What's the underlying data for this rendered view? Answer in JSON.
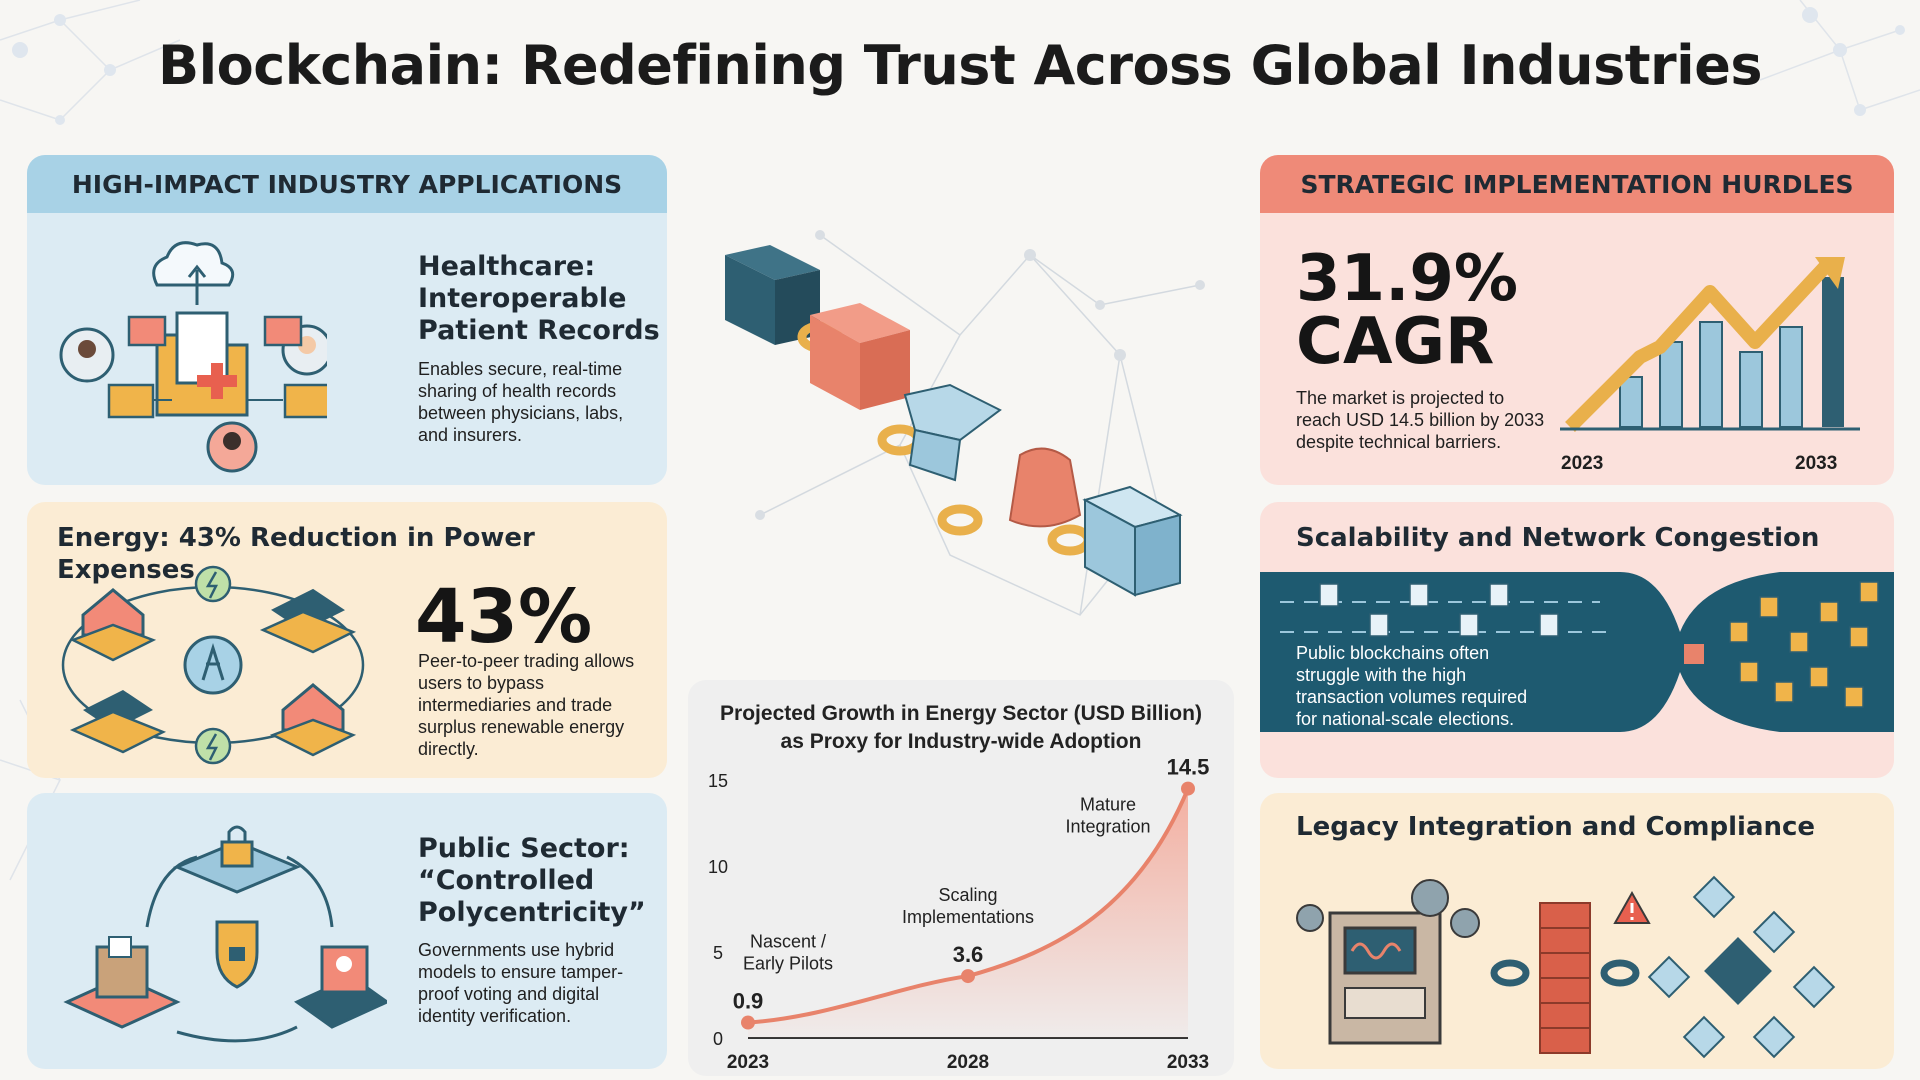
{
  "title": "Blockchain: Redefining Trust Across Global Industries",
  "left": {
    "header": "HIGH-IMPACT INDUSTRY APPLICATIONS",
    "healthcare": {
      "title_lines": [
        "Healthcare:",
        "Interoperable",
        "Patient Records"
      ],
      "body_lines": [
        "Enables secure, real-time",
        "sharing of health records",
        "between physicians, labs,",
        "and insurers."
      ]
    },
    "energy": {
      "title": "Energy: 43% Reduction in Power Expenses",
      "stat": "43%",
      "body_lines": [
        "Peer-to-peer trading allows",
        "users to bypass",
        "intermediaries and trade",
        "surplus renewable energy",
        "directly."
      ]
    },
    "public": {
      "title_lines": [
        "Public Sector:",
        "“Controlled",
        "Polycentricity”"
      ],
      "body_lines": [
        "Governments use hybrid",
        "models to ensure tamper-",
        "proof voting and digital",
        "identity verification."
      ]
    }
  },
  "chart_data": {
    "type": "line",
    "title": "Projected Growth in Energy Sector (USD Billion)",
    "subtitle": "as Proxy for Industry-wide Adoption",
    "x": [
      2023,
      2028,
      2033
    ],
    "y": [
      0.9,
      3.6,
      14.5
    ],
    "x_ticks": [
      "2023",
      "2028",
      "2033"
    ],
    "y_ticks": [
      "0",
      "5",
      "10",
      "15"
    ],
    "ylim": [
      0,
      15
    ],
    "point_labels": [
      "0.9",
      "3.6",
      "14.5"
    ],
    "annotations": [
      {
        "lines": [
          "Nascent /",
          "Early Pilots"
        ]
      },
      {
        "lines": [
          "Scaling",
          "Implementations"
        ]
      },
      {
        "lines": [
          "Mature",
          "Integration"
        ]
      }
    ],
    "colors": {
      "line": "#e8836b",
      "fill": "#f4a898"
    }
  },
  "right": {
    "header": "STRATEGIC IMPLEMENTATION HURDLES",
    "cagr": {
      "stat_line1": "31.9%",
      "stat_line2": "CAGR",
      "body_lines": [
        "The market is projected to",
        "reach USD 14.5 billion by 2033",
        "despite technical barriers."
      ],
      "year_start": "2023",
      "year_end": "2033"
    },
    "scalability": {
      "title": "Scalability and Network Congestion",
      "body_lines": [
        "Public blockchains often",
        "struggle with the high",
        "transaction volumes required",
        "for national-scale elections."
      ]
    },
    "legacy": {
      "title": "Legacy Integration and Compliance"
    }
  },
  "colors": {
    "teal": "#2e5f72",
    "coral": "#e8836b",
    "gold": "#e9b04b",
    "light_blue": "#9cc7dc",
    "red_header": "#ef8a78",
    "blue_header": "#a8d2e6"
  }
}
